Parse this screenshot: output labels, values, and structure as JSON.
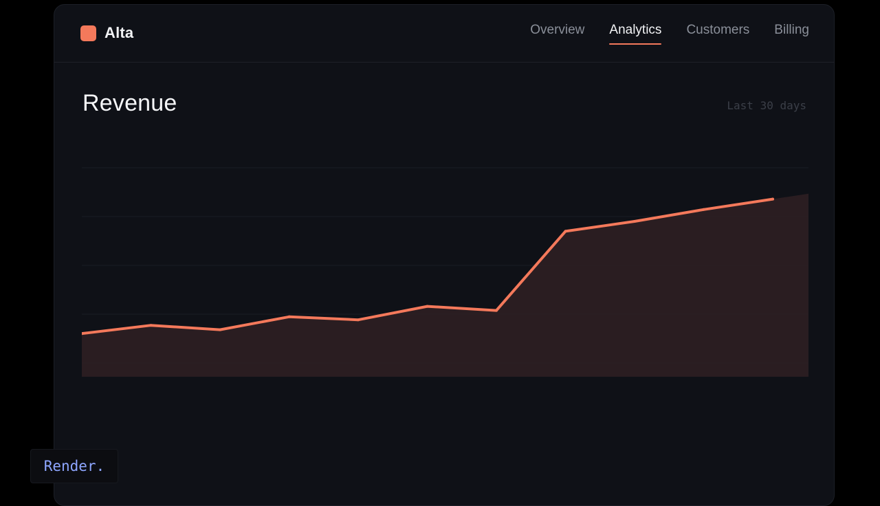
{
  "app": {
    "name": "Alta",
    "brand_color": "#f4795b"
  },
  "nav": {
    "tabs": [
      {
        "label": "Overview",
        "active": false
      },
      {
        "label": "Analytics",
        "active": true
      },
      {
        "label": "Customers",
        "active": false
      },
      {
        "label": "Billing",
        "active": false
      }
    ]
  },
  "main": {
    "title": "Revenue",
    "range_label": "Last 30 days"
  },
  "chart_data": {
    "type": "area",
    "title": "Revenue",
    "xlabel": "",
    "ylabel": "",
    "grid": true,
    "x": [
      1,
      2,
      3,
      4,
      5,
      6,
      7,
      8,
      9,
      10,
      11
    ],
    "values": [
      17.2,
      20.2,
      18.6,
      23.3,
      22.2,
      27.1,
      25.6,
      54.4,
      58.0,
      62.3,
      66.1
    ],
    "ylim": [
      0,
      80
    ],
    "series_color": "#f4795b",
    "fill_color": "#2d1f22"
  },
  "badge": {
    "label": "Render."
  }
}
